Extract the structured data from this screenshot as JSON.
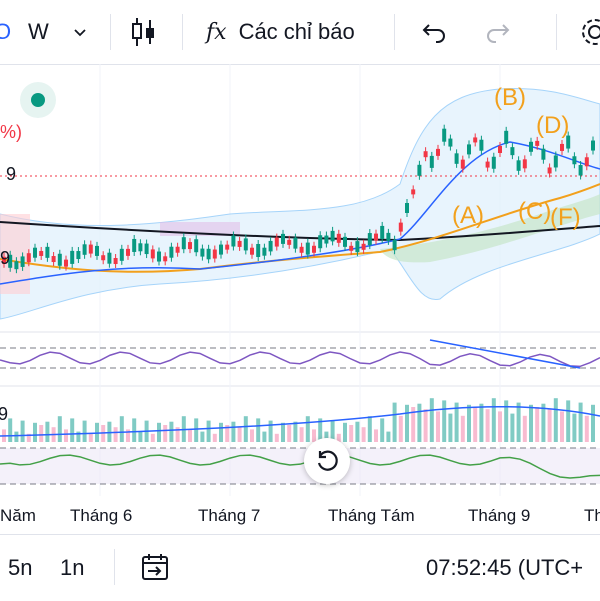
{
  "toolbar": {
    "compare_icon_glyph": "O",
    "interval_label": "W",
    "indicators_label": "Các chỉ báo",
    "indicators_glyph": "fx"
  },
  "price_label": "9",
  "lower_label": "9",
  "percent_label": "%)",
  "vol_label": "9",
  "waves": [
    "(B)",
    "(D)",
    "(A)",
    "(C)",
    "(F)"
  ],
  "xaxis": {
    "labels": [
      "Năm",
      "Tháng 6",
      "Tháng 7",
      "Tháng Tám",
      "Tháng 9",
      "Th"
    ]
  },
  "bottom": {
    "range_5n": "5n",
    "range_1n": "1n",
    "time": "07:52:45 (UTC+"
  },
  "colors": {
    "up": "#089981",
    "down": "#f23645",
    "wave": "#f2a01c",
    "rsi": "#7e57c2",
    "ma": "#2962ff"
  }
}
